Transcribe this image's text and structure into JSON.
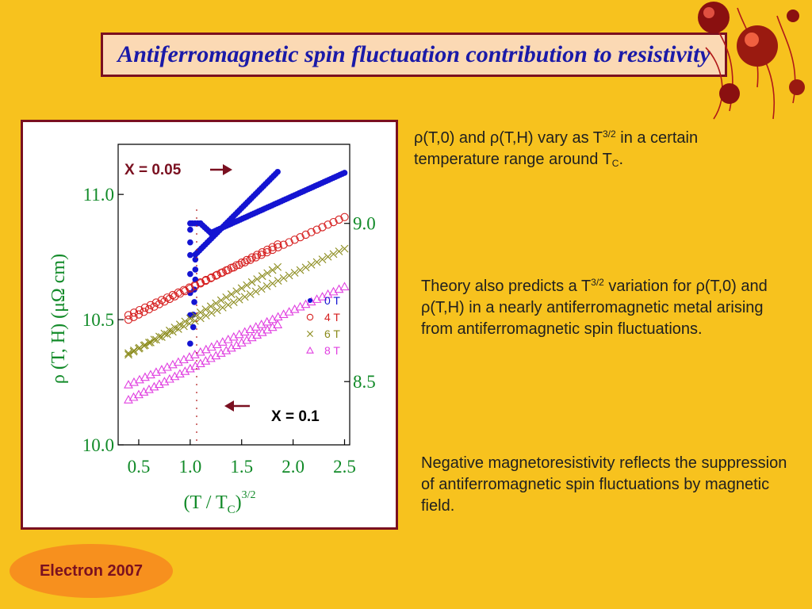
{
  "slide": {
    "title": "Antiferromagnetic spin fluctuation contribution to resistivity",
    "footer": "Electron 2007"
  },
  "text": {
    "p1": {
      "a": "ρ(T,0) and ρ(T,H)  vary as T",
      "sup": "3/2",
      "b": " in a certain temperature range around T",
      "sub": "C",
      "c": "."
    },
    "p2": {
      "a": "Theory also predicts a T",
      "sup": "3/2",
      "b": " variation for ρ(T,0) and ρ(T,H) in a nearly antiferromagnetic metal arising from antiferromagnetic spin fluctuations."
    },
    "p3": "Negative magnetoresistivity reflects the suppression of antiferromagnetic spin fluctuations by magnetic field."
  },
  "chart_data": {
    "type": "scatter",
    "xlabel": "(T / T",
    "xlabel_sub": "C",
    "xlabel_close": ")",
    "xlabel_sup": "3/2",
    "ylabel": "ρ (T, H)   (μΩ cm)",
    "xlim": [
      0.3,
      2.55
    ],
    "x_ticks": [
      "0.5",
      "1.0",
      "1.5",
      "2.0",
      "2.5"
    ],
    "left_axis": {
      "ylim": [
        10.0,
        11.2
      ],
      "ticks": [
        "10.0",
        "10.5",
        "11.0"
      ]
    },
    "right_axis": {
      "ylim": [
        8.3,
        9.25
      ],
      "ticks": [
        "8.5",
        "9.0"
      ]
    },
    "annotations": {
      "upper": "X = 0.05",
      "lower": "X = 0.1"
    },
    "legend": {
      "placement": "right-middle",
      "entries": [
        {
          "label": "0 T",
          "marker": "dot",
          "color": "#1414d2"
        },
        {
          "label": "4 T",
          "marker": "circle",
          "color": "#d62020"
        },
        {
          "label": "6 T",
          "marker": "cross",
          "color": "#8a8a1a"
        },
        {
          "label": "8 T",
          "marker": "triangle",
          "color": "#e040e0"
        }
      ]
    },
    "series": [
      {
        "name": "0 T",
        "group": "X = 0.05",
        "marker": "dot",
        "color": "#1414d2",
        "segments": [
          {
            "x": [
              1.0,
              1.0,
              1.0,
              1.0,
              1.0,
              1.0,
              1.0,
              1.0
            ],
            "y": [
              8.62,
              8.71,
              8.78,
              8.84,
              8.9,
              8.94,
              8.98,
              9.0
            ]
          },
          {
            "x0": 1.02,
            "x1": 1.1,
            "y0": 9.0,
            "y1": 9.0,
            "n": 4
          },
          {
            "x0": 1.1,
            "x1": 1.2,
            "y0": 9.0,
            "y1": 8.97,
            "n": 6
          },
          {
            "x0": 1.2,
            "x1": 2.5,
            "y0": 8.97,
            "y1": 9.16,
            "n": 60
          }
        ]
      },
      {
        "name": "4 T",
        "group": "X = 0.05",
        "marker": "circle",
        "color": "#d62020",
        "segments": [
          {
            "x0": 0.4,
            "x1": 2.5,
            "y0": 8.71,
            "y1": 9.02,
            "n": 40
          }
        ]
      },
      {
        "name": "6 T",
        "group": "X = 0.05",
        "marker": "cross",
        "color": "#8a8a1a",
        "segments": [
          {
            "x0": 0.4,
            "x1": 2.5,
            "y0": 8.59,
            "y1": 8.92,
            "n": 40
          }
        ]
      },
      {
        "name": "8 T",
        "group": "X = 0.05",
        "marker": "triangle",
        "color": "#e040e0",
        "segments": [
          {
            "x0": 0.4,
            "x1": 2.5,
            "y0": 8.49,
            "y1": 8.8,
            "n": 40
          }
        ]
      },
      {
        "name": "0 T",
        "group": "X = 0.1",
        "marker": "dot",
        "color": "#1414d2",
        "segments": [
          {
            "x": [
              1.03,
              1.03,
              1.04,
              1.04,
              1.05,
              1.05,
              1.05
            ],
            "y": [
              10.47,
              10.52,
              10.57,
              10.62,
              10.66,
              10.7,
              10.74
            ]
          },
          {
            "x0": 1.05,
            "x1": 1.85,
            "y0": 10.76,
            "y1": 11.09,
            "n": 42
          }
        ]
      },
      {
        "name": "4 T",
        "group": "X = 0.1",
        "marker": "circle",
        "color": "#d62020",
        "segments": [
          {
            "x0": 0.4,
            "x1": 1.85,
            "y0": 10.5,
            "y1": 10.8,
            "n": 30
          }
        ]
      },
      {
        "name": "6 T",
        "group": "X = 0.1",
        "marker": "cross",
        "color": "#8a8a1a",
        "segments": [
          {
            "x0": 0.4,
            "x1": 1.85,
            "y0": 10.36,
            "y1": 10.71,
            "n": 30
          }
        ]
      },
      {
        "name": "8 T",
        "group": "X = 0.1",
        "marker": "triangle",
        "color": "#e040e0",
        "segments": [
          {
            "x0": 0.4,
            "x1": 1.85,
            "y0": 10.18,
            "y1": 10.48,
            "n": 30
          }
        ]
      }
    ]
  }
}
